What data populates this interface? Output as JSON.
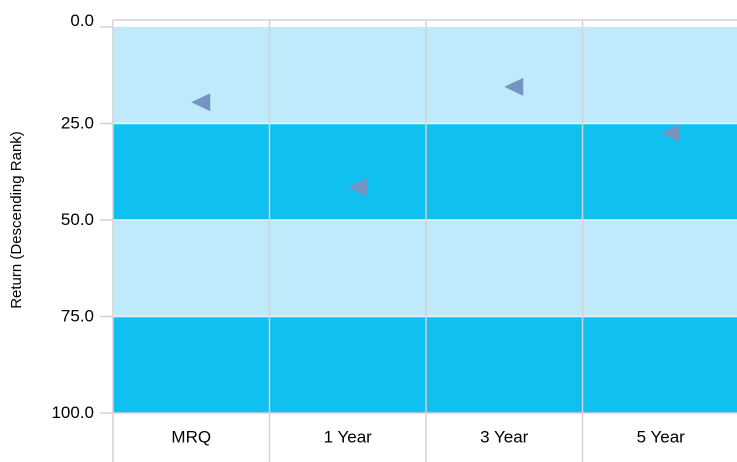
{
  "chart_data": {
    "type": "scatter",
    "title": "",
    "xlabel": "",
    "ylabel": "Return (Descending Rank)",
    "categories": [
      "MRQ",
      "1 Year",
      "3 Year",
      "5 Year"
    ],
    "y_ticks": [
      "0.0",
      "25.0",
      "50.0",
      "75.0",
      "100.0"
    ],
    "ylim": [
      0,
      100
    ],
    "y_inverted": true,
    "grid": true,
    "marker": "left-triangle",
    "series": [
      {
        "values": [
          19.5,
          41.5,
          15.5,
          27.5
        ]
      }
    ],
    "bands": [
      {
        "from": 0,
        "to": 25,
        "color": "#bfeafb"
      },
      {
        "from": 25,
        "to": 50,
        "color": "#0fc0f0"
      },
      {
        "from": 50,
        "to": 75,
        "color": "#bfeafb"
      },
      {
        "from": 75,
        "to": 100,
        "color": "#0fc0f0"
      }
    ],
    "colors": {
      "marker": "#7694c0",
      "grid": "#d3d3d3",
      "band_line": "#e6f4fb"
    }
  }
}
